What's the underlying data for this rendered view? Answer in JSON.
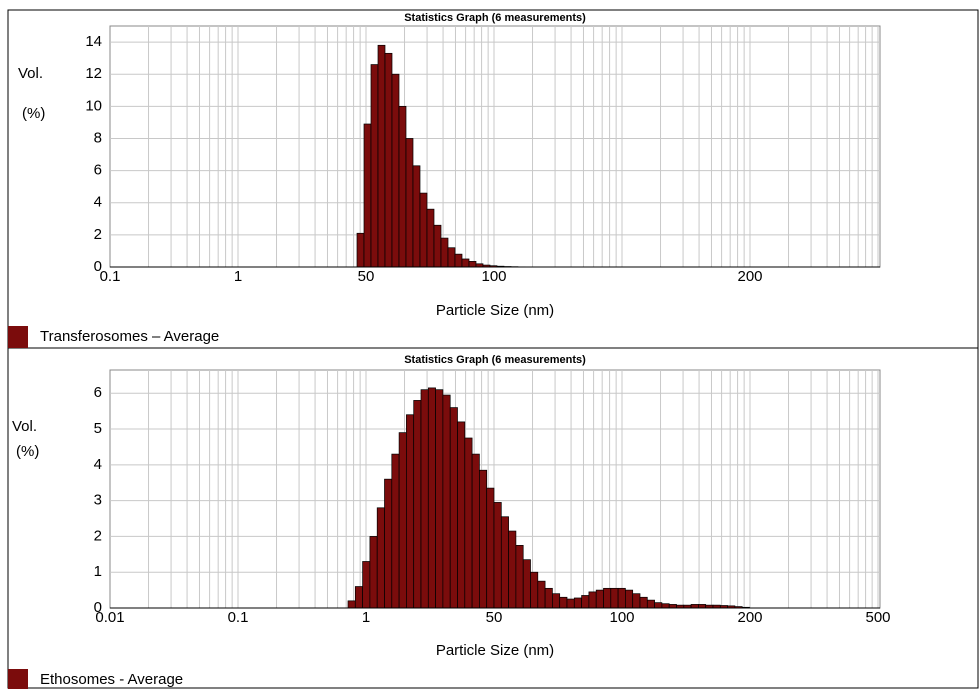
{
  "chart_data": [
    {
      "type": "histogram",
      "title": "Statistics Graph (6 measurements)",
      "xlabel": "Particle Size (nm)",
      "ylabel": [
        "Vol.",
        "(%)"
      ],
      "ylim": [
        0,
        15
      ],
      "yticks": [
        0,
        2,
        4,
        6,
        8,
        10,
        12,
        14
      ],
      "xticks": [
        0.1,
        1,
        50,
        100,
        200
      ],
      "grid": true,
      "series": [
        {
          "name": "Transferosomes – Average",
          "color": "#7b0c0c",
          "values": [
            2.1,
            8.9,
            12.6,
            13.8,
            13.3,
            12.0,
            10.0,
            8.0,
            6.3,
            4.6,
            3.6,
            2.6,
            1.8,
            1.2,
            0.8,
            0.5,
            0.35,
            0.2,
            0.12,
            0.08,
            0.05,
            0.03,
            0.02,
            0.01
          ]
        }
      ]
    },
    {
      "type": "histogram",
      "title": "Statistics Graph (6 measurements)",
      "xlabel": "Particle Size (nm)",
      "ylabel": [
        "Vol.",
        "(%)"
      ],
      "ylim": [
        0,
        6.65
      ],
      "yticks": [
        0,
        1,
        2,
        3,
        4,
        5,
        6
      ],
      "xticks": [
        0.01,
        0.1,
        1,
        50,
        100,
        200,
        500
      ],
      "grid": true,
      "series": [
        {
          "name": "Ethosomes - Average",
          "color": "#7b0c0c",
          "values": [
            0.2,
            0.6,
            1.3,
            2.0,
            2.8,
            3.6,
            4.3,
            4.9,
            5.4,
            5.8,
            6.1,
            6.15,
            6.1,
            5.95,
            5.6,
            5.2,
            4.75,
            4.3,
            3.85,
            3.35,
            2.95,
            2.55,
            2.15,
            1.75,
            1.35,
            1.0,
            0.75,
            0.55,
            0.4,
            0.3,
            0.25,
            0.28,
            0.35,
            0.45,
            0.5,
            0.55,
            0.55,
            0.55,
            0.5,
            0.4,
            0.3,
            0.22,
            0.15,
            0.12,
            0.1,
            0.08,
            0.08,
            0.1,
            0.1,
            0.08,
            0.08,
            0.07,
            0.06,
            0.04,
            0.02
          ]
        }
      ]
    }
  ]
}
